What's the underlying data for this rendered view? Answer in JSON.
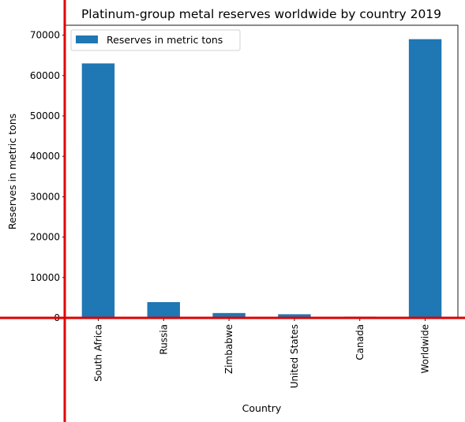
{
  "chart_data": {
    "type": "bar",
    "title": "Platinum-group metal reserves worldwide by country 2019",
    "xlabel": "Country",
    "ylabel": "Reserves in metric tons",
    "categories": [
      "South Africa",
      "Russia",
      "Zimbabwe",
      "United States",
      "Canada",
      "Worldwide"
    ],
    "series": [
      {
        "name": "Reserves in metric tons",
        "values": [
          63000,
          3900,
          1200,
          900,
          310,
          69000
        ],
        "color": "#1f77b4"
      }
    ],
    "ylim": [
      0,
      72450
    ],
    "yticks": [
      0,
      10000,
      20000,
      30000,
      40000,
      50000,
      60000,
      70000
    ],
    "grid": false,
    "legend_position": "top-left",
    "overlay_line_color": "#e00000"
  }
}
